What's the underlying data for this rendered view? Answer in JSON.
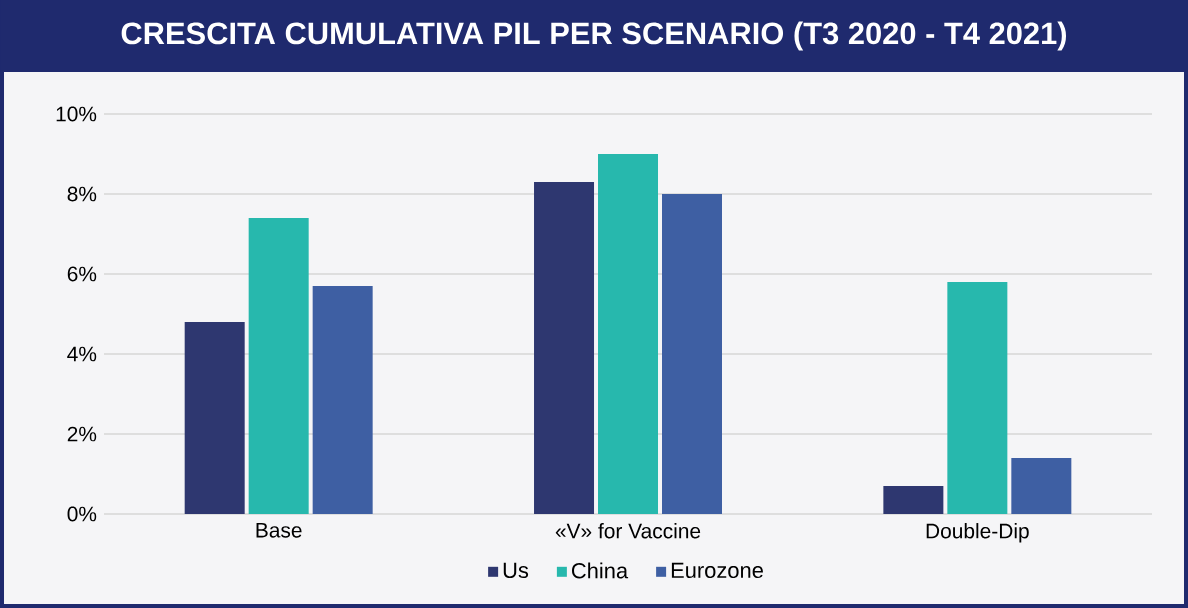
{
  "chart_data": {
    "type": "bar",
    "title": "CRESCITA CUMULATIVA PIL PER SCENARIO (T3 2020 - T4 2021)",
    "categories": [
      "Base",
      "«V» for Vaccine",
      "Double-Dip"
    ],
    "series": [
      {
        "name": "Us",
        "color": "#2e3770",
        "values": [
          4.8,
          8.3,
          0.7
        ]
      },
      {
        "name": "China",
        "color": "#27b8ad",
        "values": [
          7.4,
          9.0,
          5.8
        ]
      },
      {
        "name": "Eurozone",
        "color": "#3e5fa3",
        "values": [
          5.7,
          8.0,
          1.4
        ]
      }
    ],
    "ylim": [
      0,
      10
    ],
    "yticks": [
      {
        "value": 0,
        "label": "0%"
      },
      {
        "value": 2,
        "label": "2%"
      },
      {
        "value": 4,
        "label": "4%"
      },
      {
        "value": 6,
        "label": "6%"
      },
      {
        "value": 8,
        "label": "8%"
      },
      {
        "value": 10,
        "label": "10%"
      }
    ],
    "grid": "y",
    "legend": "bottom"
  }
}
